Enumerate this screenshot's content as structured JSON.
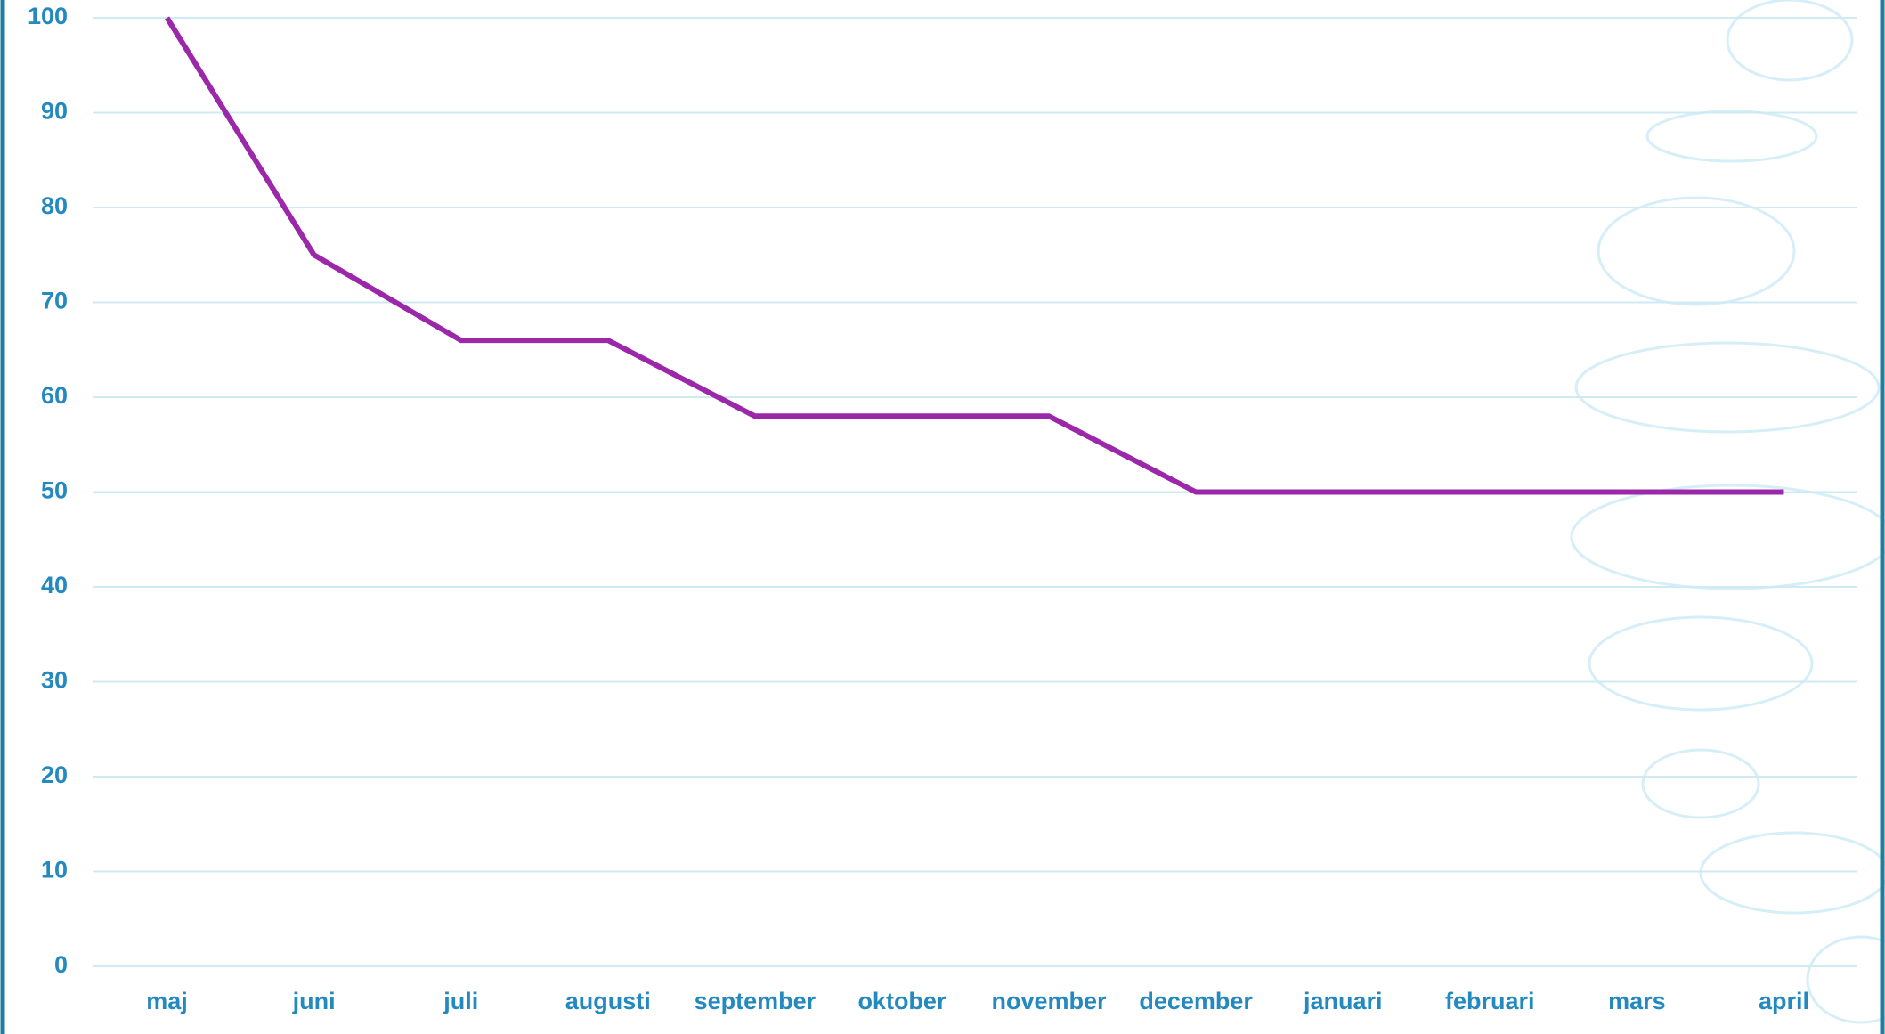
{
  "chart_data": {
    "type": "line",
    "categories": [
      "maj",
      "juni",
      "juli",
      "augusti",
      "september",
      "oktober",
      "november",
      "december",
      "januari",
      "februari",
      "mars",
      "april"
    ],
    "series": [
      {
        "color": "#9b27a9",
        "values": [
          100,
          75,
          66,
          66,
          58,
          58,
          58,
          50,
          50,
          50,
          50,
          50
        ]
      }
    ],
    "ylim": [
      0,
      100
    ],
    "yticks": [
      0,
      10,
      20,
      30,
      40,
      50,
      60,
      70,
      80,
      90,
      100
    ],
    "grid": true
  }
}
